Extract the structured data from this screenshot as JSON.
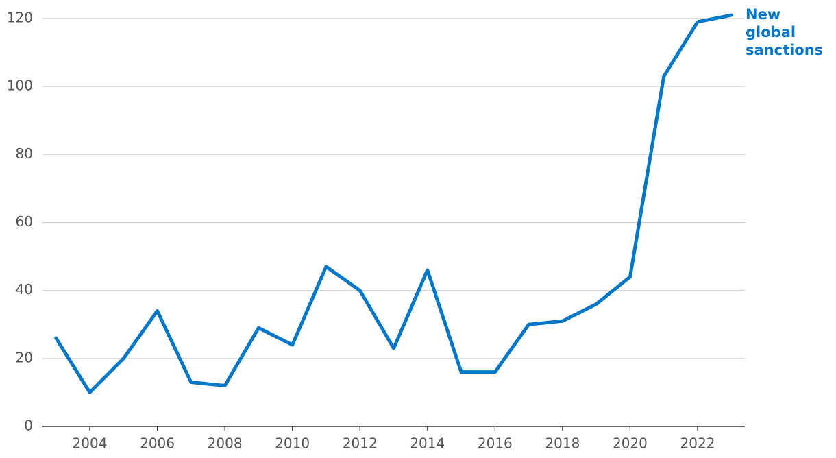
{
  "chart_data": {
    "type": "line",
    "x": [
      2003,
      2004,
      2005,
      2006,
      2007,
      2008,
      2009,
      2010,
      2011,
      2012,
      2013,
      2014,
      2015,
      2016,
      2017,
      2018,
      2019,
      2020,
      2021,
      2022,
      2023
    ],
    "series": [
      {
        "name": "New global sanctions",
        "color": "#0077c8",
        "values": [
          26,
          10,
          20,
          34,
          13,
          12,
          29,
          24,
          47,
          40,
          23,
          46,
          16,
          16,
          30,
          31,
          36,
          44,
          103,
          119,
          121
        ]
      }
    ],
    "xlim": [
      2002.6,
      2023.4
    ],
    "xticks": [
      2004,
      2006,
      2008,
      2010,
      2012,
      2014,
      2016,
      2018,
      2020,
      2022
    ],
    "ylim": [
      0,
      120
    ],
    "yticks": [
      0,
      20,
      40,
      60,
      80,
      100,
      120
    ],
    "grid": true
  }
}
